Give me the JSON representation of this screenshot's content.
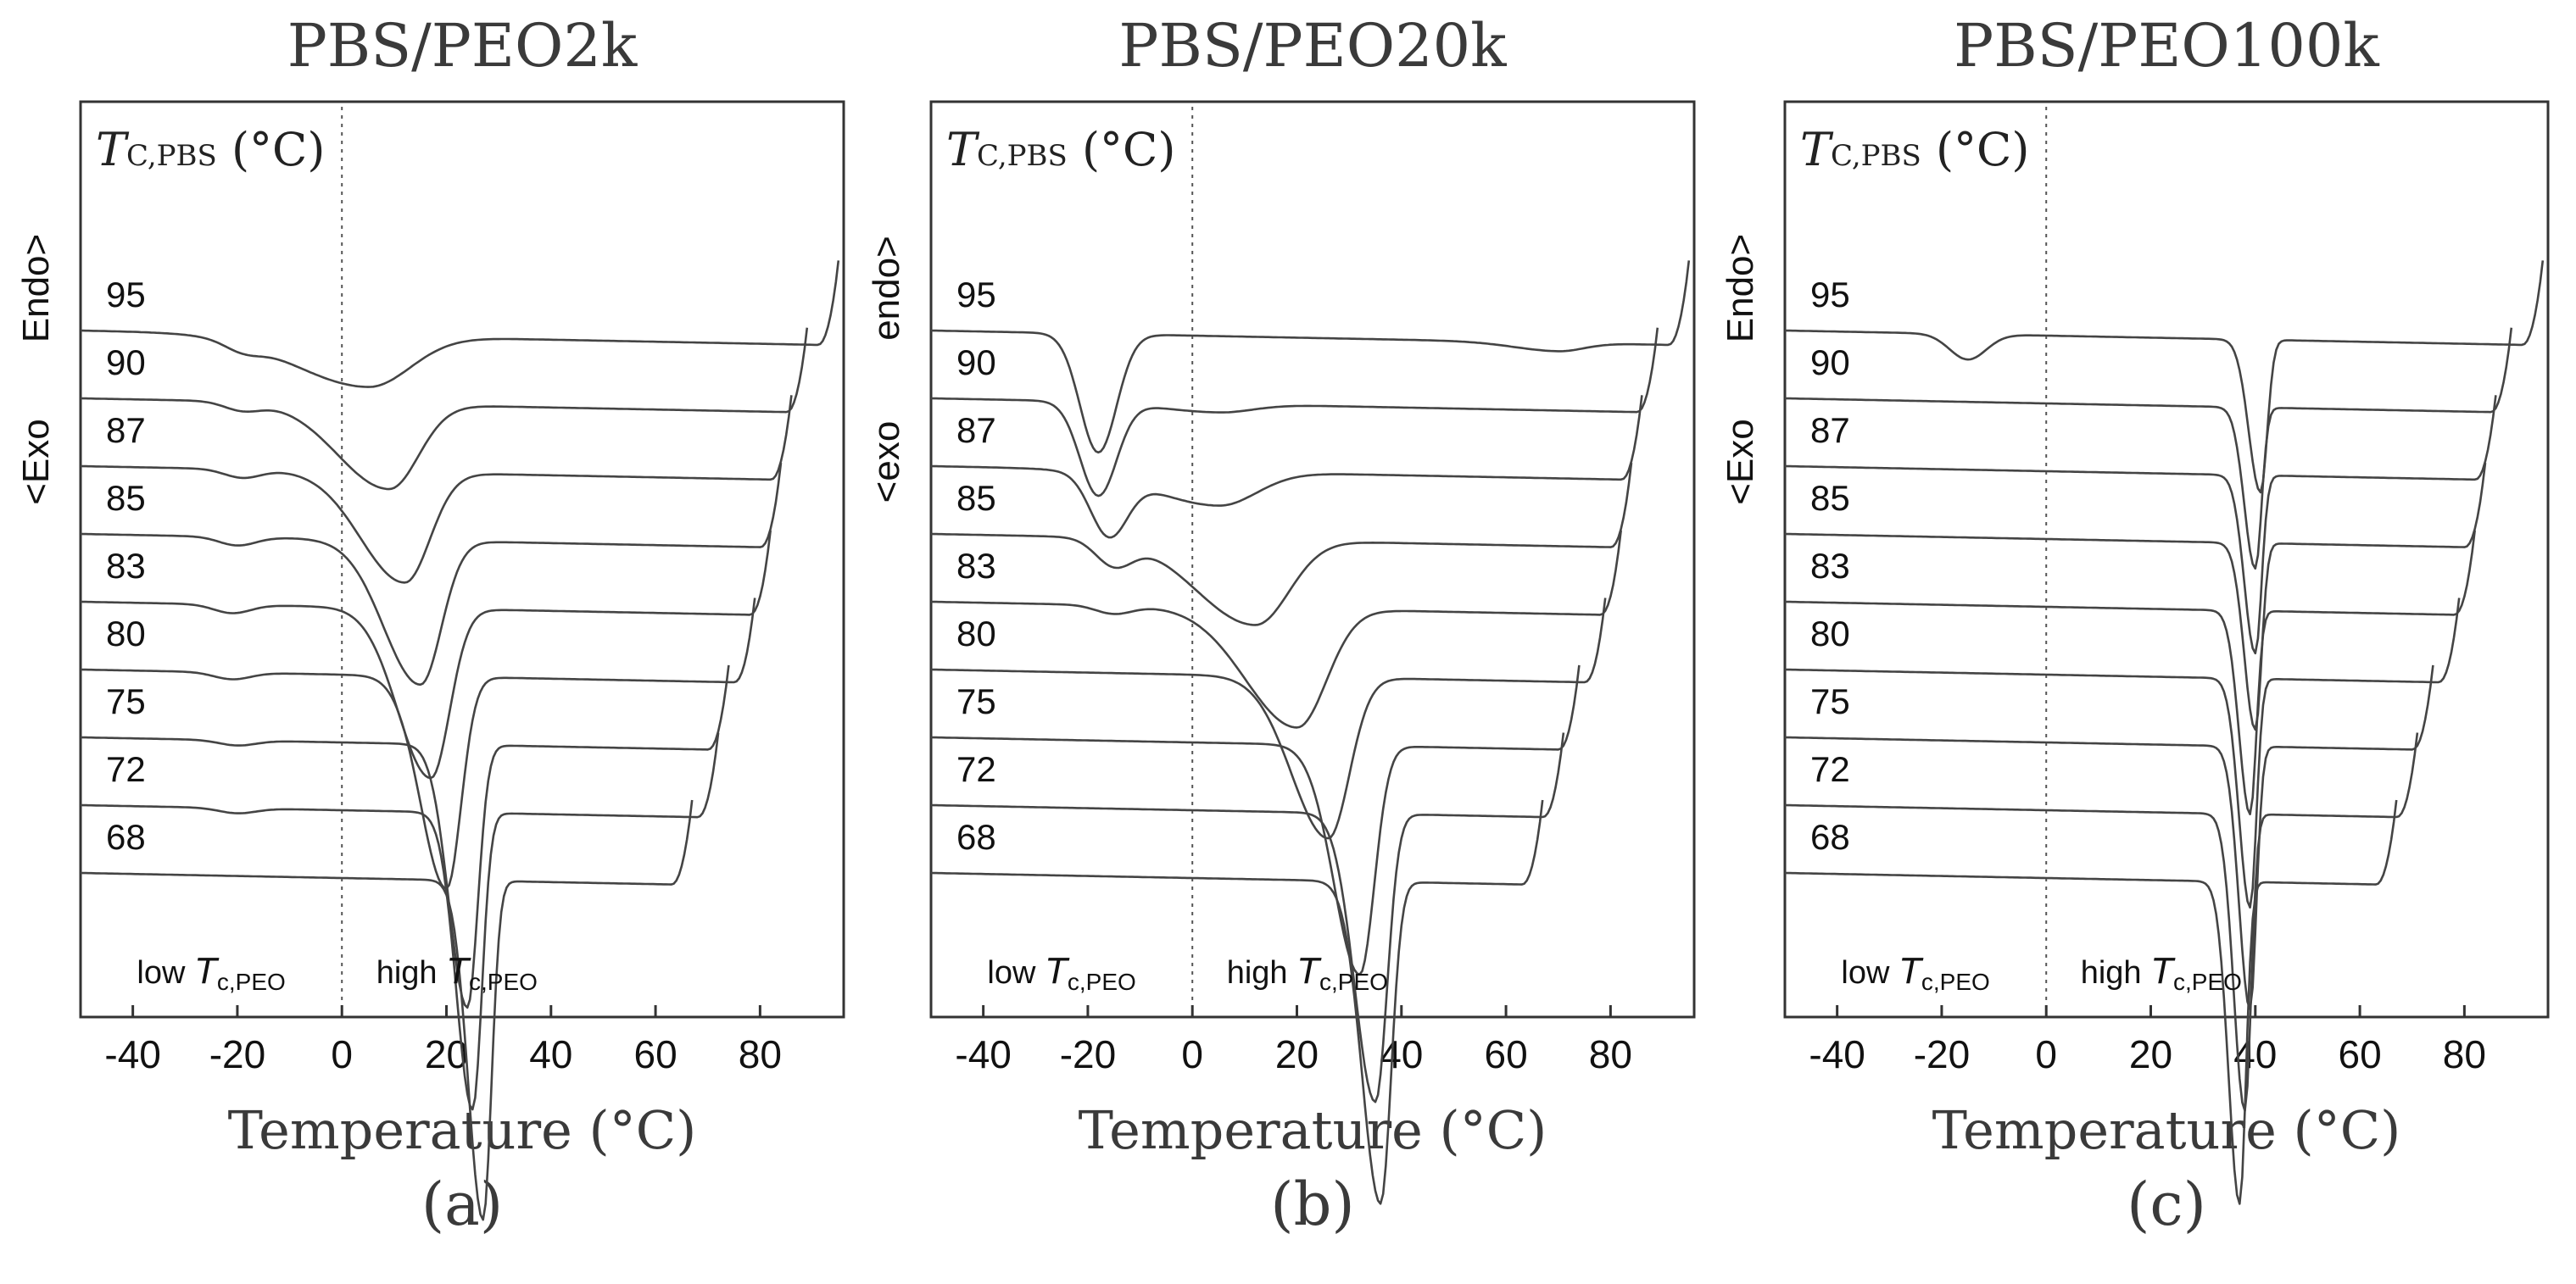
{
  "chart_data": [
    {
      "type": "line",
      "title": "PBS/PEO2k",
      "panel_label": "(a)",
      "xlabel": "Temperature (°C)",
      "ylabel_endo": "Endo>",
      "ylabel_exo": "<Exo",
      "xlim": [
        -50,
        96
      ],
      "xticks": [
        -40,
        -20,
        0,
        20,
        40,
        60,
        80
      ],
      "tick_labels": [
        "-40",
        "-20",
        "0",
        "20",
        "40",
        "60",
        "80"
      ],
      "series_header": {
        "symbol": "T",
        "subscript": "C,PBS",
        "unit": "(°C)"
      },
      "low_annotation": {
        "prefix": "low",
        "symbol": "T",
        "subscript": "c,PEO"
      },
      "high_annotation": {
        "prefix": "high",
        "symbol": "T",
        "subscript": "c,PEO"
      },
      "series": [
        {
          "name": "95",
          "end_x": 95,
          "minor_peak_x": -19,
          "minor_depth": 0.05,
          "main_peak_x": 5,
          "main_depth": 0.3,
          "main_width": 10
        },
        {
          "name": "90",
          "end_x": 89,
          "minor_peak_x": -19,
          "minor_depth": 0.05,
          "main_peak_x": 9,
          "main_depth": 0.5,
          "main_width": 7
        },
        {
          "name": "87",
          "end_x": 86,
          "minor_peak_x": -19,
          "minor_depth": 0.05,
          "main_peak_x": 12,
          "main_depth": 0.65,
          "main_width": 6
        },
        {
          "name": "85",
          "end_x": 84,
          "minor_peak_x": -20,
          "minor_depth": 0.05,
          "main_peak_x": 15,
          "main_depth": 0.85,
          "main_width": 5
        },
        {
          "name": "83",
          "end_x": 82,
          "minor_peak_x": -21,
          "minor_depth": 0.05,
          "main_peak_x": 17,
          "main_depth": 1.0,
          "main_width": 4.5
        },
        {
          "name": "80",
          "end_x": 79,
          "minor_peak_x": -21,
          "minor_depth": 0.04,
          "main_peak_x": 20,
          "main_depth": 1.25,
          "main_width": 3.5
        },
        {
          "name": "75",
          "end_x": 74,
          "minor_peak_x": -20,
          "minor_depth": 0.03,
          "main_peak_x": 24,
          "main_depth": 1.55,
          "main_width": 2.5
        },
        {
          "name": "72",
          "end_x": 72,
          "minor_peak_x": -20,
          "minor_depth": 0.03,
          "main_peak_x": 25,
          "main_depth": 1.75,
          "main_width": 2.2
        },
        {
          "name": "68",
          "end_x": 67,
          "minor_peak_x": -20,
          "minor_depth": 0.0,
          "main_peak_x": 27,
          "main_depth": 2.0,
          "main_width": 2.0
        }
      ]
    },
    {
      "type": "line",
      "title": "PBS/PEO20k",
      "panel_label": "(b)",
      "xlabel": "Temperature (°C)",
      "ylabel_endo": "endo>",
      "ylabel_exo": "<exo",
      "xlim": [
        -50,
        96
      ],
      "xticks": [
        -40,
        -20,
        0,
        20,
        40,
        60,
        80
      ],
      "tick_labels": [
        "-40",
        "-20",
        "0",
        "20",
        "40",
        "60",
        "80"
      ],
      "series_header": {
        "symbol": "T",
        "subscript": "C,PBS",
        "unit": "(°C)"
      },
      "low_annotation": {
        "prefix": "low",
        "symbol": "T",
        "subscript": "c,PEO"
      },
      "high_annotation": {
        "prefix": "high",
        "symbol": "T",
        "subscript": "c,PEO"
      },
      "series": [
        {
          "name": "95",
          "end_x": 95,
          "minor_peak_x": -18,
          "minor_depth": 0.7,
          "main_peak_x": 70,
          "main_depth": 0.05,
          "main_width": 6
        },
        {
          "name": "90",
          "end_x": 89,
          "minor_peak_x": -18,
          "minor_depth": 0.55,
          "main_peak_x": 5,
          "main_depth": 0.05,
          "main_width": 8
        },
        {
          "name": "87",
          "end_x": 86,
          "minor_peak_x": -16,
          "minor_depth": 0.35,
          "main_peak_x": 5,
          "main_depth": 0.2,
          "main_width": 9
        },
        {
          "name": "85",
          "end_x": 84,
          "minor_peak_x": -15,
          "minor_depth": 0.15,
          "main_peak_x": 12,
          "main_depth": 0.5,
          "main_width": 8
        },
        {
          "name": "83",
          "end_x": 82,
          "minor_peak_x": -15,
          "minor_depth": 0.05,
          "main_peak_x": 20,
          "main_depth": 0.7,
          "main_width": 7
        },
        {
          "name": "80",
          "end_x": 79,
          "minor_peak_x": -15,
          "minor_depth": 0.0,
          "main_peak_x": 26,
          "main_depth": 0.95,
          "main_width": 5
        },
        {
          "name": "75",
          "end_x": 74,
          "minor_peak_x": -15,
          "minor_depth": 0.0,
          "main_peak_x": 32,
          "main_depth": 1.35,
          "main_width": 3.5
        },
        {
          "name": "72",
          "end_x": 71,
          "minor_peak_x": -15,
          "minor_depth": 0.0,
          "main_peak_x": 35,
          "main_depth": 1.7,
          "main_width": 2.8
        },
        {
          "name": "68",
          "end_x": 67,
          "minor_peak_x": -15,
          "minor_depth": 0.0,
          "main_peak_x": 36,
          "main_depth": 1.9,
          "main_width": 2.5
        }
      ]
    },
    {
      "type": "line",
      "title": "PBS/PEO100k",
      "panel_label": "(c)",
      "xlabel": "Temperature (°C)",
      "ylabel_endo": "Endo>",
      "ylabel_exo": "<Exo",
      "xlim": [
        -50,
        96
      ],
      "xticks": [
        -40,
        -20,
        0,
        20,
        40,
        60,
        80
      ],
      "tick_labels": [
        "-40",
        "-20",
        "0",
        "20",
        "40",
        "60",
        "80"
      ],
      "series_header": {
        "symbol": "T",
        "subscript": "C,PBS",
        "unit": "(°C)"
      },
      "low_annotation": {
        "prefix": "low",
        "symbol": "T",
        "subscript": "c,PEO"
      },
      "high_annotation": {
        "prefix": "high",
        "symbol": "T",
        "subscript": "c,PEO"
      },
      "series": [
        {
          "name": "95",
          "end_x": 95,
          "minor_peak_x": -15,
          "minor_depth": 0.15,
          "main_peak_x": 41,
          "main_depth": 0.9,
          "main_width": 1.6
        },
        {
          "name": "90",
          "end_x": 89,
          "minor_peak_x": -15,
          "minor_depth": 0.0,
          "main_peak_x": 40,
          "main_depth": 0.95,
          "main_width": 1.5
        },
        {
          "name": "87",
          "end_x": 86,
          "minor_peak_x": -15,
          "minor_depth": 0.0,
          "main_peak_x": 40,
          "main_depth": 1.05,
          "main_width": 1.5
        },
        {
          "name": "85",
          "end_x": 84,
          "minor_peak_x": -15,
          "minor_depth": 0.0,
          "main_peak_x": 40,
          "main_depth": 1.1,
          "main_width": 1.5
        },
        {
          "name": "83",
          "end_x": 82,
          "minor_peak_x": -15,
          "minor_depth": 0.0,
          "main_peak_x": 39,
          "main_depth": 1.2,
          "main_width": 1.5
        },
        {
          "name": "80",
          "end_x": 79,
          "minor_peak_x": -15,
          "minor_depth": 0.0,
          "main_peak_x": 39,
          "main_depth": 1.35,
          "main_width": 1.5
        },
        {
          "name": "75",
          "end_x": 74,
          "minor_peak_x": -15,
          "minor_depth": 0.0,
          "main_peak_x": 39,
          "main_depth": 1.55,
          "main_width": 1.5
        },
        {
          "name": "72",
          "end_x": 71,
          "minor_peak_x": -15,
          "minor_depth": 0.0,
          "main_peak_x": 38,
          "main_depth": 1.75,
          "main_width": 1.5
        },
        {
          "name": "68",
          "end_x": 67,
          "minor_peak_x": -15,
          "minor_depth": 0.0,
          "main_peak_x": 37,
          "main_depth": 1.9,
          "main_width": 1.5
        }
      ]
    }
  ]
}
